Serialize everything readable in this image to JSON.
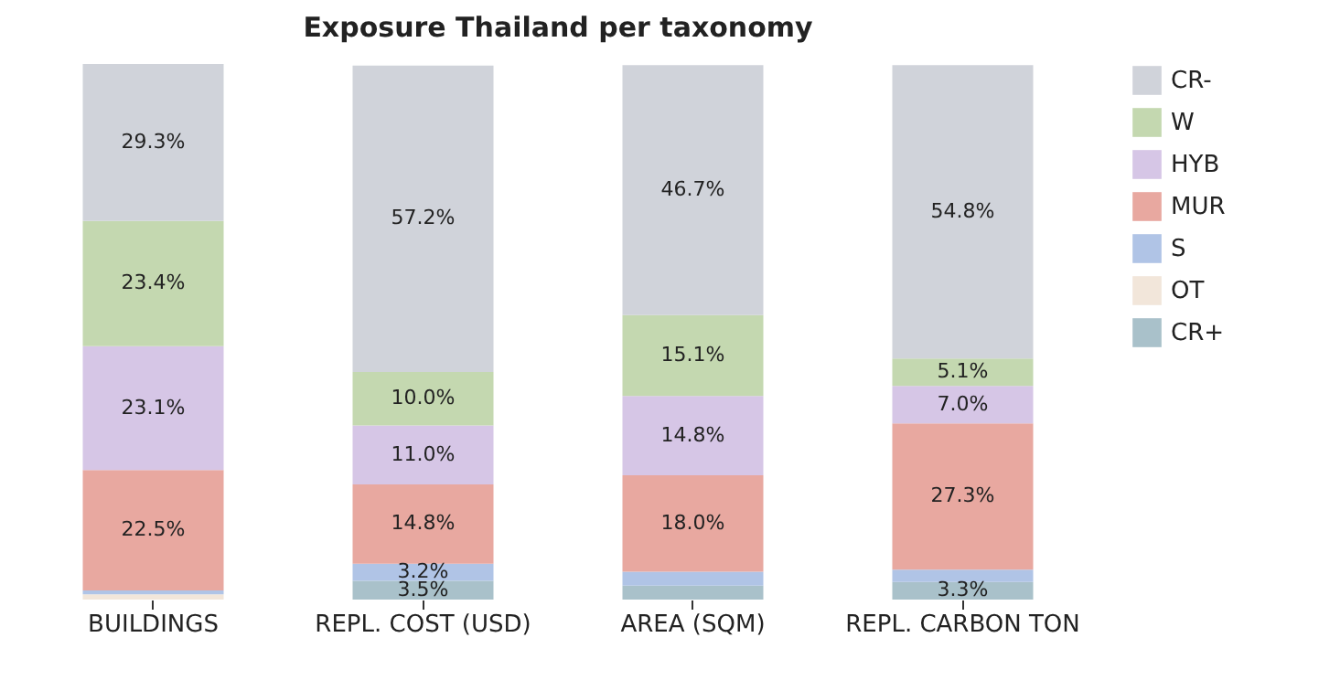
{
  "chart_data": {
    "type": "bar",
    "title": "Exposure Thailand per taxonomy",
    "stacked": true,
    "categories": [
      "BUILDINGS",
      "REPL. COST (USD)",
      "AREA (SQM)",
      "REPL. CARBON TON"
    ],
    "ylim": [
      0,
      100
    ],
    "tick_labels": "x",
    "legend": "top right",
    "grid": false,
    "series": [
      {
        "name": "CR+",
        "color": "#a9c1ca",
        "values": [
          0.0,
          3.5,
          2.6,
          3.3
        ],
        "value_labels": [
          null,
          "3.5%",
          null,
          "3.3%"
        ]
      },
      {
        "name": "OT",
        "color": "#f2e6da",
        "values": [
          1.0,
          null,
          null,
          null
        ],
        "value_labels": [
          null,
          null,
          null,
          null
        ]
      },
      {
        "name": "S",
        "color": "#b0c4e6",
        "values": [
          0.7,
          3.2,
          2.6,
          2.3
        ],
        "value_labels": [
          null,
          "3.2%",
          null,
          null
        ]
      },
      {
        "name": "MUR",
        "color": "#e8a8a0",
        "values": [
          22.5,
          14.8,
          18.0,
          27.3
        ],
        "value_labels": [
          "22.5%",
          "14.8%",
          "18.0%",
          "27.3%"
        ]
      },
      {
        "name": "HYB",
        "color": "#d6c6e6",
        "values": [
          23.1,
          11.0,
          14.8,
          7.0
        ],
        "value_labels": [
          "23.1%",
          "11.0%",
          "14.8%",
          "7.0%"
        ]
      },
      {
        "name": "W",
        "color": "#c4d8b0",
        "values": [
          23.4,
          10.0,
          15.1,
          5.1
        ],
        "value_labels": [
          "23.4%",
          "10.0%",
          "15.1%",
          "5.1%"
        ]
      },
      {
        "name": "CR-",
        "color": "#d0d3da",
        "values": [
          29.3,
          57.2,
          46.7,
          54.8
        ],
        "value_labels": [
          "29.3%",
          "57.2%",
          "46.7%",
          "54.8%"
        ]
      }
    ]
  }
}
